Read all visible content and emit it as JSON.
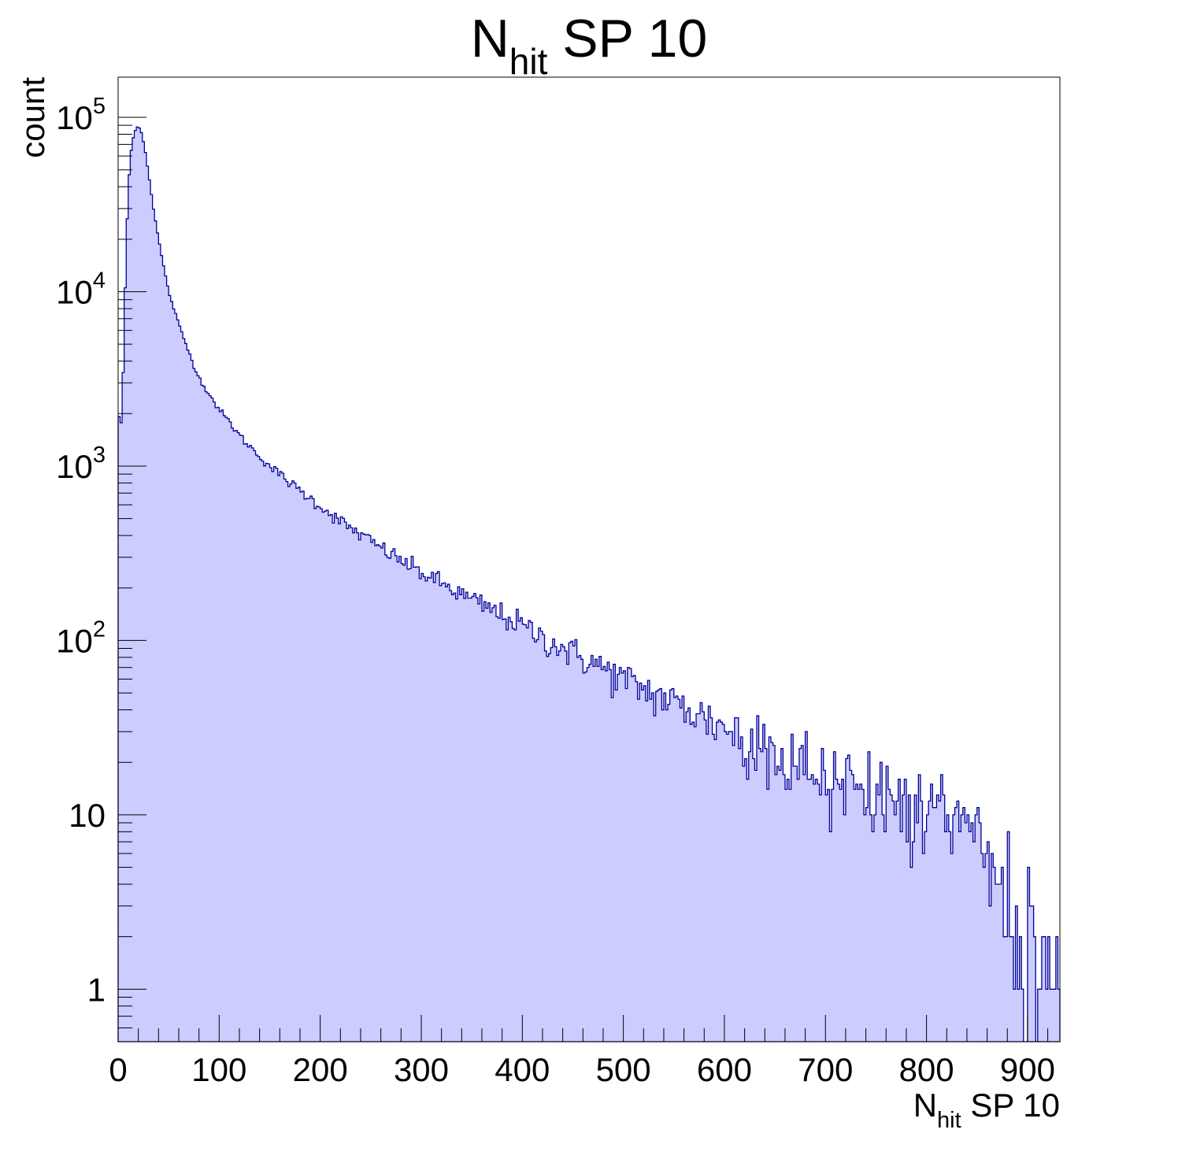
{
  "chart_data": {
    "type": "histogram",
    "title": {
      "main": "N",
      "sub": "hit",
      "rest": " SP 10"
    },
    "xlabel": {
      "main": "N",
      "sub": "hit",
      "rest": " SP 10"
    },
    "ylabel": "count",
    "xlim": [
      0,
      932
    ],
    "ylim": [
      0.5,
      170000
    ],
    "yscale": "log",
    "grid": false,
    "x_ticks": [
      "0",
      "100",
      "200",
      "300",
      "400",
      "500",
      "600",
      "700",
      "800",
      "900"
    ],
    "x_tick_values": [
      0,
      100,
      200,
      300,
      400,
      500,
      600,
      700,
      800,
      900
    ],
    "y_ticks": [
      {
        "value": 1,
        "mantissa": "1",
        "exp": ""
      },
      {
        "value": 10,
        "mantissa": "10",
        "exp": ""
      },
      {
        "value": 100,
        "mantissa": "10",
        "exp": "2"
      },
      {
        "value": 1000,
        "mantissa": "10",
        "exp": "3"
      },
      {
        "value": 10000,
        "mantissa": "10",
        "exp": "4"
      },
      {
        "value": 100000,
        "mantissa": "10",
        "exp": "5"
      }
    ],
    "bin_width": 2,
    "fill_color": "#ccccff",
    "line_color": "#000099",
    "key_points": [
      [
        0,
        2500
      ],
      [
        2,
        1500
      ],
      [
        4,
        2000
      ],
      [
        6,
        6000
      ],
      [
        8,
        18000
      ],
      [
        10,
        38000
      ],
      [
        12,
        58000
      ],
      [
        14,
        72000
      ],
      [
        16,
        81000
      ],
      [
        18,
        87000
      ],
      [
        20,
        89000
      ],
      [
        22,
        86000
      ],
      [
        24,
        78000
      ],
      [
        26,
        68000
      ],
      [
        28,
        58000
      ],
      [
        30,
        48000
      ],
      [
        35,
        30000
      ],
      [
        40,
        20000
      ],
      [
        45,
        14000
      ],
      [
        50,
        10000
      ],
      [
        60,
        6500
      ],
      [
        70,
        4500
      ],
      [
        80,
        3200
      ],
      [
        90,
        2600
      ],
      [
        100,
        2100
      ],
      [
        110,
        1800
      ],
      [
        120,
        1500
      ],
      [
        130,
        1300
      ],
      [
        150,
        1000
      ],
      [
        175,
        760
      ],
      [
        200,
        590
      ],
      [
        225,
        460
      ],
      [
        250,
        370
      ],
      [
        275,
        300
      ],
      [
        300,
        245
      ],
      [
        325,
        205
      ],
      [
        350,
        170
      ],
      [
        375,
        145
      ],
      [
        400,
        122
      ],
      [
        425,
        100
      ],
      [
        450,
        85
      ],
      [
        475,
        72
      ],
      [
        500,
        60
      ],
      [
        525,
        51
      ],
      [
        550,
        44
      ],
      [
        575,
        38
      ],
      [
        600,
        32
      ],
      [
        625,
        27
      ],
      [
        650,
        23
      ],
      [
        675,
        20
      ],
      [
        700,
        17
      ],
      [
        725,
        15
      ],
      [
        750,
        13
      ],
      [
        775,
        11.5
      ],
      [
        800,
        10
      ],
      [
        825,
        9
      ],
      [
        850,
        7.5
      ],
      [
        870,
        5
      ],
      [
        880,
        3
      ],
      [
        890,
        2
      ],
      [
        900,
        1.5
      ],
      [
        920,
        1
      ],
      [
        932,
        0.8
      ]
    ]
  }
}
